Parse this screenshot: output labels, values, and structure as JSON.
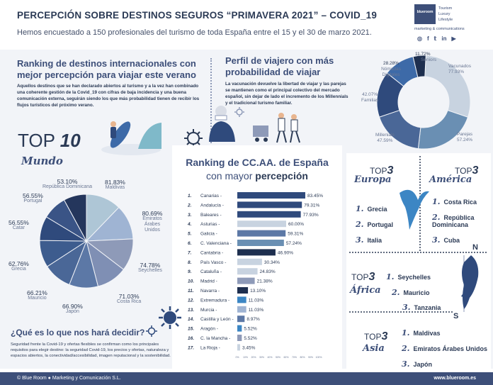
{
  "header": {
    "title": "PERCEPCIÓN SOBRE DESTINOS SEGUROS “PRIMAVERA 2021” – COVID_19",
    "subtitle": "Hemos encuestado a 150 profesionales del turismo de toda España entre el 15 y el 30 de marzo 2021."
  },
  "logo": {
    "name": "blueroom",
    "tags": [
      "Tourism",
      "Luxury",
      "Lifestyle"
    ],
    "tagline": "marketing & communications",
    "social": [
      "f-icon",
      "t-icon",
      "in-icon",
      "yt-icon"
    ]
  },
  "ranking_int": {
    "title_line1": "Ranking de destinos internacionales con",
    "title_line2": "mejor percepción para viajar este verano",
    "para": "Aquellos destinos que se han declarado abiertos al turismo y a la vez han combinado una coherente gestión de la Covid_19 con cifras de baja incidencia y una buena comunicación externa, seguirán siendo los que más probabilidad tienen de recibir los flujos turísticos del próximo verano."
  },
  "perfil": {
    "title_line1": "Perfil de viajero con más",
    "title_line2": "probabilidad de viajar",
    "para": "La vacunación devuelve la libertad de viajar y las parejas se mantienen como el principal colectivo del mercado español, sin dejar de lado el incremento de los Millennials y el tradicional turismo familiar."
  },
  "top10": {
    "label": "TOP",
    "num": "10",
    "region": "Mundo"
  },
  "ranking_es": {
    "title_line1": "Ranking de CC.AA. de España",
    "title_pre": "con mayor ",
    "title_bold": "percepción"
  },
  "europa": {
    "top": "TOP",
    "num": "3",
    "name": "Europa",
    "items": [
      "Grecia",
      "Portugal",
      "Italia"
    ]
  },
  "america": {
    "top": "TOP",
    "num": "3",
    "name": "América",
    "items": [
      "Costa Rica",
      "República Dominicana",
      "Cuba"
    ]
  },
  "africa": {
    "top": "TOP",
    "num": "3",
    "name": "África",
    "items": [
      "Seychelles",
      "Mauricio",
      "Tanzania"
    ]
  },
  "asia": {
    "top": "TOP",
    "num": "3",
    "name": "Asia",
    "items": [
      "Maldivas",
      "Emiratos Árabes Unidos",
      "Japón"
    ]
  },
  "compass": {
    "n": "N",
    "s": "S"
  },
  "numerals": [
    "1.",
    "2.",
    "3."
  ],
  "question": {
    "title": "¿Qué es lo que nos hará decidir?",
    "para": "Seguridad frente la Covid-19 y ofertas flexibles se confirman como los principales requisitos para elegir destino: la seguridad Covid-19, los precios y ofertas, naturaleza y espacios abiertos, la conectividad/accesibilidad, imagen reputacional y la sostenibilidad."
  },
  "footer": {
    "left": "© Blue Room ● Marketing y Comunicación S.L.",
    "right": "www.blueroom.es"
  },
  "colors": {
    "navy": "#2b3a55",
    "accent": "#3d4f79",
    "band": "#f2f4f8",
    "pie_dark": "#2f4a7c",
    "pie_light": "#aec6d6"
  },
  "chart_data": [
    {
      "type": "pie",
      "title": "Perfil de viajero",
      "categories": [
        "Vacunados",
        "Parejas",
        "Millenials",
        "Familias",
        "Nómadas Digitales",
        "Seniors"
      ],
      "values": [
        77.93,
        57.24,
        47.59,
        42.07,
        28.28,
        11.72
      ],
      "value_labels": [
        "77.93%",
        "57.24%",
        "47.59%",
        "42.07%",
        "28.28%",
        "11.72%"
      ]
    },
    {
      "type": "pie",
      "title": "TOP 10 Mundo",
      "categories": [
        "Maldivas",
        "Emiratos Árabes Unidos",
        "Seychelles",
        "Costa Rica",
        "Japón",
        "Mauricio",
        "Grecia",
        "Catar",
        "Portugal",
        "República Dominicana"
      ],
      "values": [
        81.83,
        80.69,
        74.78,
        71.03,
        66.9,
        66.21,
        62.76,
        56.55,
        56.55,
        53.1
      ],
      "value_labels": [
        "81.83%",
        "80.69%",
        "74.78%",
        "71.03%",
        "66.90%",
        "66.21%",
        "62,76%",
        "56.55%",
        "56.55%",
        "53.10%"
      ],
      "label_names": [
        "Maldivas",
        "Emiratos\nÁrabes\nUnidos",
        "Seychelles",
        "Costa Rica",
        "Japón",
        "Mauricio",
        "Grecia",
        "Catar",
        "Portugal",
        "República Dominicana"
      ]
    },
    {
      "type": "bar",
      "orientation": "horizontal",
      "title": "Ranking de CC.AA. de España con mayor percepción",
      "ranks": [
        "1.",
        "2.",
        "3.",
        "4.",
        "5.",
        "6.",
        "7.",
        "8.",
        "9.",
        "10.",
        "11.",
        "12.",
        "13.",
        "14.",
        "15.",
        "16.",
        "17."
      ],
      "categories": [
        "Canarias",
        "Andalucía",
        "Baleares",
        "Asturias",
        "Galicia",
        "C. Valenciana",
        "Cantabria",
        "País Vasco",
        "Cataluña",
        "Madrid",
        "Navarra",
        "Extremadura",
        "Murcia",
        "Castilla y León",
        "Aragón",
        "C. la Mancha",
        "La Rioja"
      ],
      "values": [
        83.45,
        79.31,
        77.93,
        60.0,
        59.31,
        57.24,
        46.9,
        30.34,
        24.83,
        21.38,
        13.1,
        11.03,
        11.03,
        8.97,
        5.52,
        5.52,
        3.45
      ],
      "value_labels": [
        "83.45%",
        "79.31%",
        "77.93%",
        "60.00%",
        "59.31%",
        "57.24%",
        "46.90%",
        "30.34%",
        "24.83%",
        "21.38%",
        "13.10%",
        "11.03%",
        "11.03%",
        "8.97%",
        "5.52%",
        "5.52%",
        "3.45%"
      ],
      "bar_colors": [
        "#2f4a7c",
        "#2f4a7c",
        "#2f4a7c",
        "#c8d3e0",
        "#5c78a6",
        "#6a8fb3",
        "#1e2f4f",
        "#c8d3e0",
        "#c8d3e0",
        "#8e9ab8",
        "#1e2f4f",
        "#3c86c4",
        "#9fb4d3",
        "#5c78a6",
        "#3c86c4",
        "#8e9ab8",
        "#c8d3e0"
      ],
      "xlim": [
        0,
        100
      ],
      "xticks": [
        "0%",
        "10%",
        "20%",
        "30%",
        "40%",
        "50%",
        "60%",
        "70%",
        "80%",
        "90%",
        "100%"
      ]
    }
  ]
}
